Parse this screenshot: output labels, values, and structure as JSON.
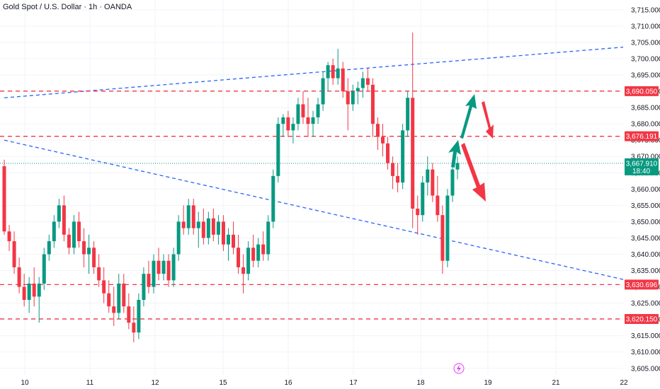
{
  "header": {
    "title": "Gold Spot / U.S. Dollar · 1h · OANDA"
  },
  "colors": {
    "up": "#089981",
    "down": "#f23645",
    "level": "#f23645",
    "trend": "#2962ff",
    "current": "#089981",
    "arrow_up": "#089981",
    "arrow_down": "#f23645"
  },
  "chart_data": {
    "type": "candlestick",
    "ylim": [
      3603,
      3718
    ],
    "y_ticks": [
      "3,715.000",
      "3,710.000",
      "3,705.000",
      "3,700.000",
      "3,695.000",
      "3,690.000",
      "3,685.000",
      "3,680.000",
      "3,675.000",
      "3,670.000",
      "3,665.000",
      "3,660.000",
      "3,655.000",
      "3,650.000",
      "3,645.000",
      "3,640.000",
      "3,635.000",
      "3,630.000",
      "3,625.000",
      "3,620.000",
      "3,615.000",
      "3,610.000",
      "3,605.000"
    ],
    "y_tick_values": [
      3715,
      3710,
      3705,
      3700,
      3695,
      3690,
      3685,
      3680,
      3675,
      3670,
      3665,
      3660,
      3655,
      3650,
      3645,
      3640,
      3635,
      3630,
      3625,
      3620,
      3615,
      3610,
      3605
    ],
    "x_ticks": [
      "10",
      "11",
      "12",
      "15",
      "16",
      "17",
      "18",
      "19",
      "21",
      "22"
    ],
    "horizontal_levels": [
      {
        "label": "3,690.050",
        "value": 3690.05
      },
      {
        "label": "3,676.191",
        "value": 3676.191
      },
      {
        "label": "3,630.696",
        "value": 3630.696
      },
      {
        "label": "3,620.150",
        "value": 3620.15
      }
    ],
    "current_price": {
      "label": "3,667.910",
      "value": 3667.91,
      "countdown": "18:40"
    },
    "trendlines": [
      {
        "from": [
          0,
          3688
        ],
        "to": [
          160,
          3708
        ]
      },
      {
        "from": [
          0,
          3675
        ],
        "to": [
          160,
          3620
        ]
      }
    ],
    "candles": [
      [
        3667,
        3669,
        3646,
        3647
      ],
      [
        3647,
        3649,
        3641,
        3644
      ],
      [
        3644,
        3647,
        3634,
        3636
      ],
      [
        3636,
        3639,
        3628,
        3630
      ],
      [
        3630,
        3634,
        3624,
        3626
      ],
      [
        3626,
        3633,
        3622,
        3631
      ],
      [
        3631,
        3636,
        3624,
        3627
      ],
      [
        3627,
        3633,
        3619,
        3631
      ],
      [
        3631,
        3642,
        3629,
        3640
      ],
      [
        3640,
        3646,
        3638,
        3644
      ],
      [
        3644,
        3652,
        3642,
        3650
      ],
      [
        3650,
        3657,
        3648,
        3655
      ],
      [
        3655,
        3658,
        3644,
        3646
      ],
      [
        3646,
        3648,
        3640,
        3642
      ],
      [
        3642,
        3652,
        3640,
        3650
      ],
      [
        3650,
        3653,
        3642,
        3644
      ],
      [
        3644,
        3648,
        3636,
        3640
      ],
      [
        3640,
        3646,
        3634,
        3642
      ],
      [
        3642,
        3644,
        3634,
        3636
      ],
      [
        3636,
        3640,
        3630,
        3632
      ],
      [
        3632,
        3636,
        3625,
        3628
      ],
      [
        3628,
        3632,
        3622,
        3624
      ],
      [
        3624,
        3630,
        3618,
        3622
      ],
      [
        3622,
        3634,
        3620,
        3631
      ],
      [
        3631,
        3634,
        3622,
        3624
      ],
      [
        3624,
        3628,
        3617,
        3619
      ],
      [
        3619,
        3624,
        3613,
        3616
      ],
      [
        3616,
        3628,
        3614,
        3626
      ],
      [
        3626,
        3636,
        3624,
        3634
      ],
      [
        3634,
        3638,
        3628,
        3630
      ],
      [
        3630,
        3640,
        3628,
        3638
      ],
      [
        3638,
        3642,
        3632,
        3634
      ],
      [
        3634,
        3640,
        3632,
        3638
      ],
      [
        3638,
        3640,
        3630,
        3632
      ],
      [
        3632,
        3642,
        3630,
        3640
      ],
      [
        3640,
        3652,
        3638,
        3650
      ],
      [
        3650,
        3655,
        3646,
        3648
      ],
      [
        3648,
        3657,
        3646,
        3655
      ],
      [
        3655,
        3657,
        3646,
        3648
      ],
      [
        3648,
        3653,
        3642,
        3650
      ],
      [
        3650,
        3654,
        3643,
        3645
      ],
      [
        3645,
        3653,
        3643,
        3651
      ],
      [
        3651,
        3654,
        3644,
        3646
      ],
      [
        3646,
        3652,
        3643,
        3650
      ],
      [
        3650,
        3652,
        3641,
        3643
      ],
      [
        3643,
        3648,
        3638,
        3646
      ],
      [
        3646,
        3650,
        3640,
        3642
      ],
      [
        3642,
        3646,
        3634,
        3636
      ],
      [
        3636,
        3640,
        3628,
        3634
      ],
      [
        3634,
        3644,
        3632,
        3642
      ],
      [
        3642,
        3646,
        3636,
        3638
      ],
      [
        3638,
        3645,
        3636,
        3643
      ],
      [
        3643,
        3647,
        3638,
        3640
      ],
      [
        3640,
        3652,
        3638,
        3650
      ],
      [
        3650,
        3666,
        3648,
        3664
      ],
      [
        3664,
        3682,
        3662,
        3680
      ],
      [
        3680,
        3683,
        3676,
        3682
      ],
      [
        3682,
        3684,
        3676,
        3678
      ],
      [
        3678,
        3682,
        3674,
        3680
      ],
      [
        3680,
        3688,
        3678,
        3686
      ],
      [
        3686,
        3690,
        3680,
        3682
      ],
      [
        3682,
        3688,
        3676,
        3680
      ],
      [
        3680,
        3684,
        3676,
        3682
      ],
      [
        3682,
        3688,
        3680,
        3686
      ],
      [
        3686,
        3696,
        3684,
        3694
      ],
      [
        3694,
        3699,
        3690,
        3698
      ],
      [
        3698,
        3700,
        3692,
        3694
      ],
      [
        3694,
        3703,
        3692,
        3697
      ],
      [
        3697,
        3699,
        3688,
        3690
      ],
      [
        3690,
        3694,
        3678,
        3686
      ],
      [
        3686,
        3692,
        3684,
        3690
      ],
      [
        3690,
        3693,
        3686,
        3691
      ],
      [
        3691,
        3696,
        3688,
        3694
      ],
      [
        3694,
        3697,
        3690,
        3692
      ],
      [
        3692,
        3694,
        3676,
        3680
      ],
      [
        3680,
        3682,
        3672,
        3676
      ],
      [
        3676,
        3680,
        3670,
        3674
      ],
      [
        3674,
        3676,
        3666,
        3668
      ],
      [
        3668,
        3670,
        3660,
        3664
      ],
      [
        3664,
        3668,
        3659,
        3662
      ],
      [
        3662,
        3680,
        3660,
        3678
      ],
      [
        3678,
        3690,
        3676,
        3688
      ],
      [
        3688,
        3708,
        3648,
        3654
      ],
      [
        3654,
        3658,
        3646,
        3652
      ],
      [
        3652,
        3664,
        3650,
        3662
      ],
      [
        3662,
        3670,
        3658,
        3666
      ],
      [
        3666,
        3668,
        3656,
        3658
      ],
      [
        3658,
        3664,
        3650,
        3652
      ],
      [
        3652,
        3655,
        3634,
        3638
      ],
      [
        3638,
        3660,
        3636,
        3658
      ],
      [
        3658,
        3668,
        3656,
        3666
      ],
      [
        3666,
        3670,
        3663,
        3668
      ]
    ]
  }
}
